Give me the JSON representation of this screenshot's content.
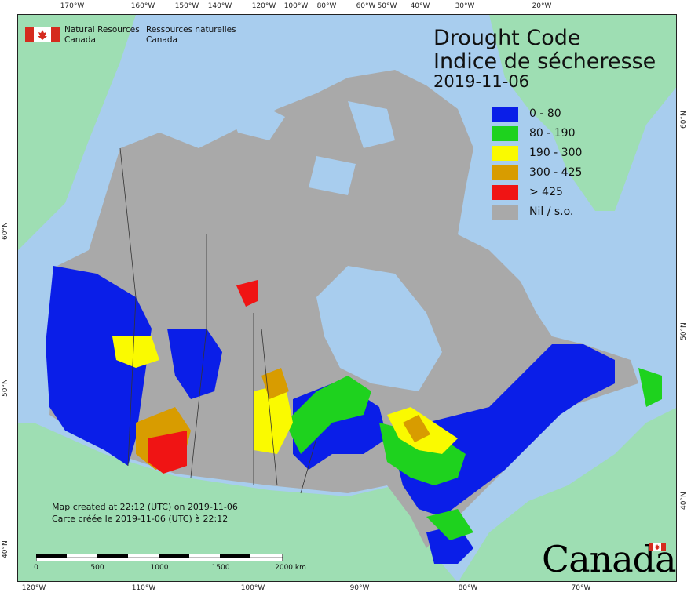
{
  "map": {
    "title_en": "Drought Code",
    "title_fr": "Indice de sécheresse",
    "date": "2019-11-06",
    "legend": [
      {
        "label": "0 - 80",
        "color": "#0a1ee8"
      },
      {
        "label": "80 - 190",
        "color": "#1ed21e"
      },
      {
        "label": "190 - 300",
        "color": "#fafa00"
      },
      {
        "label": "300 - 425",
        "color": "#d89c00"
      },
      {
        "label": "> 425",
        "color": "#f01414"
      },
      {
        "label": "Nil / s.o.",
        "color": "#a9a9a9"
      }
    ],
    "colors": {
      "water": "#a8cdee",
      "other_land": "#9edeb3",
      "no_data": "#a9a9a9"
    }
  },
  "agency": {
    "name_en_line1": "Natural Resources",
    "name_en_line2": "Canada",
    "name_fr_line1": "Ressources naturelles",
    "name_fr_line2": "Canada"
  },
  "credits": {
    "created_en": "Map created at 22:12 (UTC) on 2019-11-06",
    "created_fr": "Carte créée le 2019-11-06 (UTC) à 22:12"
  },
  "scale_bar": {
    "labels": [
      "0",
      "500",
      "1000",
      "1500",
      "2000 km"
    ]
  },
  "graticule": {
    "top": [
      "170°W",
      "160°W",
      "150°W",
      "140°W",
      "120°W",
      "100°W",
      "80°W",
      "60°W",
      "50°W",
      "40°W",
      "30°W",
      "20°W"
    ],
    "bottom": [
      "120°W",
      "110°W",
      "100°W",
      "90°W",
      "80°W",
      "70°W"
    ],
    "left": [
      "60°N",
      "50°N",
      "40°N"
    ],
    "right": [
      "60°N",
      "50°N",
      "40°N"
    ]
  },
  "wordmark": "Canada"
}
